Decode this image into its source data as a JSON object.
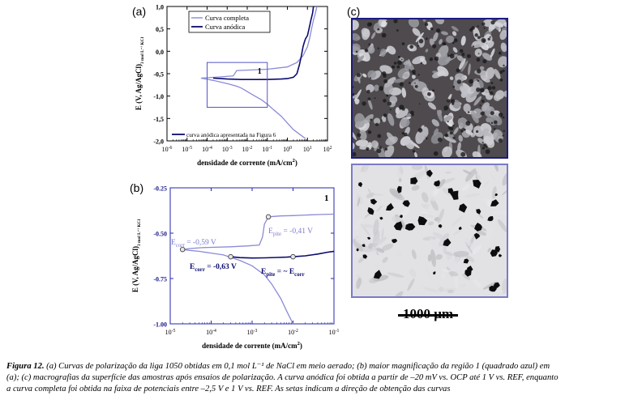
{
  "panels": {
    "a": "(a)",
    "b": "(b)",
    "c": "(c)"
  },
  "chart_data": [
    {
      "type": "line",
      "panel": "a",
      "xlabel": "densidade de corrente (mA/cm",
      "xlabel_sup": "2",
      "xlabel_end": ")",
      "ylabel_main": "E (V, Ag/AgCl)",
      "ylabel_sub": "3 mol L⁻¹ KCl",
      "x_scale": "log",
      "xlim": [
        1e-06,
        100.0
      ],
      "ylim": [
        -2.0,
        1.0
      ],
      "x_tick_labels": [
        {
          "base": "10",
          "exp": "-6"
        },
        {
          "base": "10",
          "exp": "-5"
        },
        {
          "base": "10",
          "exp": "-4"
        },
        {
          "base": "10",
          "exp": "-3"
        },
        {
          "base": "10",
          "exp": "-2"
        },
        {
          "base": "10",
          "exp": "-1"
        },
        {
          "base": "10",
          "exp": "0"
        },
        {
          "base": "10",
          "exp": "1"
        },
        {
          "base": "10",
          "exp": "2"
        }
      ],
      "y_ticks": [
        -2.0,
        -1.5,
        -1.0,
        -0.5,
        0.0,
        0.5,
        1.0
      ],
      "y_tick_labels": [
        "-2,0",
        "-1,5",
        "-1,0",
        "-0,5",
        "0,0",
        "0,5",
        "1,0"
      ],
      "legend": [
        "Curva completa",
        "Curva anódica"
      ],
      "legend_bottom": "curva anódica apresentada na Figura 6",
      "box_label": "1",
      "box_region": {
        "x": [
          0.0001,
          0.1
        ],
        "y": [
          -1.25,
          -0.25
        ]
      },
      "series": [
        {
          "name": "Curva completa",
          "color": "#8a8ad8",
          "x": [
            8,
            4,
            2,
            1,
            0.5,
            0.2,
            0.1,
            0.05,
            0.02,
            0.01,
            0.005,
            0.003,
            0.001,
            0.0002,
            5e-05,
            0.0001,
            0.0005,
            0.002,
            0.003,
            0.01,
            0.1,
            1,
            3,
            6,
            10,
            13,
            16,
            20,
            25,
            28,
            30
          ],
          "y": [
            -1.95,
            -1.85,
            -1.75,
            -1.6,
            -1.45,
            -1.3,
            -1.18,
            -1.08,
            -0.98,
            -0.9,
            -0.82,
            -0.78,
            -0.72,
            -0.65,
            -0.6,
            -0.59,
            -0.57,
            -0.55,
            -0.43,
            -0.42,
            -0.4,
            -0.35,
            -0.25,
            -0.1,
            0.1,
            0.3,
            0.5,
            0.7,
            0.85,
            0.95,
            1.0
          ]
        },
        {
          "name": "Curva anódica",
          "color": "#0b0b6e",
          "x": [
            0.0002,
            0.0005,
            0.001,
            0.005,
            0.02,
            0.1,
            0.5,
            1,
            2,
            3,
            4,
            5,
            6,
            7,
            8,
            10,
            12,
            15,
            18,
            20
          ],
          "y": [
            -0.6,
            -0.61,
            -0.62,
            -0.63,
            -0.63,
            -0.63,
            -0.62,
            -0.61,
            -0.58,
            -0.5,
            -0.3,
            -0.1,
            0.1,
            0.2,
            0.28,
            0.35,
            0.5,
            0.7,
            0.85,
            1.0
          ]
        }
      ]
    },
    {
      "type": "line",
      "panel": "b",
      "xlabel": "densidade de corrente (mA/cm",
      "xlabel_sup": "2",
      "xlabel_end": ")",
      "ylabel_main": "E (V, Ag/AgCl)",
      "ylabel_sub": "3 mol L⁻¹ KCl",
      "x_scale": "log",
      "xlim": [
        1e-05,
        0.1
      ],
      "ylim": [
        -1.0,
        -0.25
      ],
      "x_tick_labels": [
        {
          "base": "10",
          "exp": "-5"
        },
        {
          "base": "10",
          "exp": "-4"
        },
        {
          "base": "10",
          "exp": "-3"
        },
        {
          "base": "10",
          "exp": "-2"
        },
        {
          "base": "10",
          "exp": "-1"
        }
      ],
      "y_ticks": [
        -1.0,
        -0.75,
        -0.5,
        -0.25
      ],
      "y_tick_labels": [
        "-1.00",
        "-0.75",
        "-0.50",
        "-0.25"
      ],
      "box_label": "1",
      "annotations": {
        "ecorr_full": {
          "pre": "E",
          "sub": "corr",
          "post": " = -0,59 V"
        },
        "epite_full": {
          "pre": "E",
          "sub": "pite",
          "post": " = -0,41  V"
        },
        "ecorr_anodic": {
          "pre": "E",
          "sub": "corr",
          "post": " = -0,63 V"
        },
        "epite_anodic": {
          "pre": "E",
          "sub": "pite",
          "post": " = ~ E",
          "sub2": "corr"
        }
      },
      "markers": [
        {
          "series": "completa",
          "x": 2e-05,
          "y": -0.59
        },
        {
          "series": "completa",
          "x": 0.0025,
          "y": -0.41
        },
        {
          "series": "anodica",
          "x": 0.0003,
          "y": -0.63
        },
        {
          "series": "anodica",
          "x": 0.01,
          "y": -0.63
        }
      ],
      "series": [
        {
          "name": "Curva completa",
          "color": "#8a8ad8",
          "x": [
            0.01,
            0.007,
            0.005,
            0.003,
            0.002,
            0.001,
            0.0005,
            0.0002,
            0.0001,
            5e-05,
            3e-05,
            2e-05,
            3e-05,
            6e-05,
            0.0001,
            0.0003,
            0.0008,
            0.0015,
            0.0018,
            0.002,
            0.0025,
            0.005,
            0.01,
            0.02,
            0.05,
            0.1
          ],
          "y": [
            -1.0,
            -0.93,
            -0.86,
            -0.78,
            -0.73,
            -0.68,
            -0.65,
            -0.62,
            -0.61,
            -0.6,
            -0.595,
            -0.59,
            -0.585,
            -0.58,
            -0.578,
            -0.575,
            -0.57,
            -0.565,
            -0.52,
            -0.45,
            -0.41,
            -0.405,
            -0.403,
            -0.4,
            -0.397,
            -0.395
          ]
        },
        {
          "name": "Curva anódica",
          "color": "#0b0b6e",
          "x": [
            0.0003,
            0.0005,
            0.001,
            0.002,
            0.004,
            0.007,
            0.01,
            0.02,
            0.04,
            0.07,
            0.1
          ],
          "y": [
            -0.63,
            -0.635,
            -0.637,
            -0.636,
            -0.634,
            -0.632,
            -0.63,
            -0.625,
            -0.615,
            -0.605,
            -0.6
          ]
        }
      ]
    }
  ],
  "scale_bar": {
    "label": "1000 μm"
  },
  "caption": {
    "label": "Figura 12.",
    "line1": " (a) Curvas de polarização da liga 1050 obtidas em 0,1 mol L⁻¹ de NaCl em meio aerado; (b) maior magnificação da região 1 (quadrado azul) em",
    "line2": "(a); (c) macrografias da superfície das amostras após ensaios de polarização. A curva anódica foi obtida a partir de –20 mV vs. OCP até 1 V vs. REF, enquanto",
    "line3": "a curva completa foi obtida na faixa de potenciais entre –2,5 V e 1 V vs. REF. As setas indicam a direção de obtenção das curvas"
  }
}
